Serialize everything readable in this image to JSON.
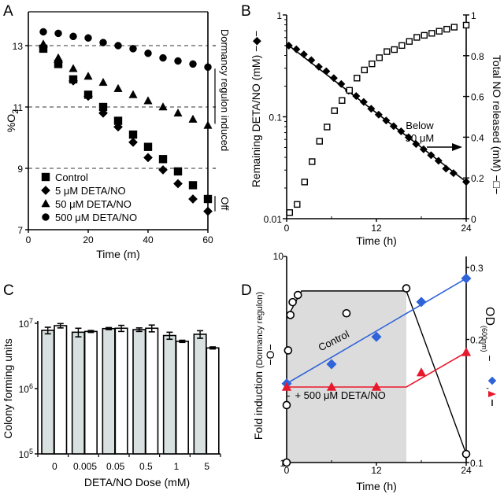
{
  "chart_data": [
    {
      "panel": "A",
      "type": "scatter",
      "title": "",
      "xlabel": "Time (m)",
      "ylabel": "%O2",
      "xlim": [
        0,
        60
      ],
      "ylim": [
        7,
        14
      ],
      "xticks": [
        "0",
        "20",
        "40",
        "60"
      ],
      "yticks": [
        "7",
        "9",
        "11",
        "13"
      ],
      "gridlines_dashed_y": [
        9,
        11,
        13
      ],
      "legend_position": "bottom-left",
      "series": [
        {
          "name": "Control",
          "marker": "square",
          "x": [
            5,
            10,
            15,
            20,
            25,
            30,
            35,
            40,
            45,
            50,
            55,
            60
          ],
          "y": [
            12.9,
            12.4,
            11.9,
            11.4,
            11.0,
            10.55,
            10.1,
            9.7,
            9.3,
            8.9,
            8.45,
            8.0
          ]
        },
        {
          "name": "5 μM DETA/NO",
          "marker": "diamond",
          "x": [
            5,
            10,
            15,
            20,
            25,
            30,
            35,
            40,
            45,
            50,
            55,
            60
          ],
          "y": [
            12.95,
            12.45,
            11.85,
            11.35,
            10.8,
            10.35,
            9.85,
            9.35,
            8.95,
            8.5,
            8.0,
            7.6
          ]
        },
        {
          "name": "50 μM DETA/NO",
          "marker": "triangle",
          "x": [
            5,
            10,
            15,
            20,
            25,
            30,
            35,
            40,
            45,
            50,
            55,
            60
          ],
          "y": [
            13.05,
            12.6,
            12.25,
            12.0,
            11.8,
            11.6,
            11.4,
            11.2,
            11.0,
            10.8,
            10.6,
            10.4
          ]
        },
        {
          "name": "500 μM DETA/NO",
          "marker": "circle",
          "x": [
            5,
            10,
            15,
            20,
            25,
            30,
            35,
            40,
            45,
            50,
            55,
            60
          ],
          "y": [
            13.45,
            13.4,
            13.3,
            13.25,
            13.1,
            13.0,
            12.9,
            12.75,
            12.6,
            12.5,
            12.4,
            12.3
          ]
        }
      ],
      "annotations": [
        {
          "text": "Dormancy regulon induced",
          "y_range": [
            10.4,
            12.3
          ]
        },
        {
          "text": "Off",
          "y_range": [
            7.6,
            8.1
          ]
        }
      ]
    },
    {
      "panel": "B",
      "type": "scatter",
      "xlabel": "Time (h)",
      "ylabel": "Remaining DETA/NO (mM) −◆−",
      "ylabel_right": "Total NO released (mM) −□−",
      "xlim": [
        0,
        24
      ],
      "ylim": [
        0.01,
        1
      ],
      "yscale": "log",
      "ylim_right": [
        0,
        1
      ],
      "xticks": [
        "0",
        "12",
        "24"
      ],
      "yticks": [
        "0.01",
        "0.1",
        "1"
      ],
      "yticks_right": [
        "0",
        "0.2",
        "0.4",
        "0.6",
        "0.8",
        "1"
      ],
      "annotation": {
        "text_line1": "Below",
        "text_line2": "50 μM",
        "arrow": "right"
      },
      "series": [
        {
          "name": "Remaining DETA/NO",
          "marker": "diamond-filled",
          "axis": "left",
          "fit_line": {
            "x": [
              0,
              24
            ],
            "y": [
              0.52,
              0.023
            ]
          },
          "x": [
            0.3,
            1.3,
            2.3,
            3.3,
            4.3,
            5.3,
            6.3,
            7.3,
            8.3,
            9.3,
            10.3,
            11.3,
            12.3,
            13.3,
            14.3,
            15.3,
            16.3,
            17.3,
            18.3,
            19.3,
            20.3,
            21.3,
            22.3,
            24
          ],
          "y": [
            0.5,
            0.46,
            0.41,
            0.36,
            0.31,
            0.28,
            0.24,
            0.21,
            0.18,
            0.16,
            0.14,
            0.12,
            0.105,
            0.092,
            0.081,
            0.072,
            0.063,
            0.054,
            0.048,
            0.042,
            0.037,
            0.031,
            0.028,
            0.023
          ]
        },
        {
          "name": "Total NO released",
          "marker": "square-open",
          "axis": "right",
          "x": [
            0.4,
            1.4,
            2.4,
            3.4,
            4.4,
            5.4,
            6.4,
            7.4,
            8.4,
            9.4,
            10.4,
            11.4,
            12.4,
            13.4,
            14.4,
            15.4,
            16.4,
            17.4,
            18.4,
            19.4,
            20.4,
            21.4,
            22.4,
            24
          ],
          "y": [
            0.03,
            0.07,
            0.18,
            0.28,
            0.38,
            0.45,
            0.53,
            0.58,
            0.63,
            0.69,
            0.73,
            0.76,
            0.79,
            0.82,
            0.83,
            0.85,
            0.87,
            0.89,
            0.9,
            0.91,
            0.92,
            0.93,
            0.94,
            0.95
          ]
        }
      ]
    },
    {
      "panel": "C",
      "type": "bar",
      "xlabel": "DETA/NO Dose (mM)",
      "ylabel": "Colony forming units",
      "yscale": "log",
      "ylim": [
        100000,
        10000000
      ],
      "yticks": [
        "10^5",
        "10^6",
        "10^7"
      ],
      "categories": [
        "0",
        "0.005",
        "0.05",
        "0.5",
        "1",
        "5"
      ],
      "series": [
        {
          "name": "gray",
          "color": "#d9e0e0",
          "values": [
            7800000,
            7300000,
            8300000,
            8000000,
            6500000,
            6800000
          ],
          "errors": [
            900000,
            1100000,
            300000,
            500000,
            800000,
            900000
          ]
        },
        {
          "name": "white",
          "color": "#ffffff",
          "values": [
            9200000,
            7500000,
            8400000,
            8400000,
            5300000,
            4200000
          ],
          "errors": [
            700000,
            250000,
            900000,
            1000000,
            200000,
            150000
          ]
        }
      ]
    },
    {
      "panel": "D",
      "type": "line",
      "xlabel": "Time (h)",
      "ylabel": "Fold induction",
      "ylabel_sub": "(Dormancy regulon)",
      "ylabel_marker": "−O−",
      "ylabel_right": "OD",
      "ylabel_right_sub": "(600nm)",
      "ylabel_right_suffix": "−◆, −▲−",
      "xlim": [
        0,
        24
      ],
      "ylim": [
        1,
        10
      ],
      "yscale": "log",
      "ylim_right": [
        0.1,
        0.32
      ],
      "yscale_right": "log",
      "xticks": [
        "0",
        "12",
        "24"
      ],
      "yticks": [
        "1",
        "10"
      ],
      "yticks_right": [
        "0.1",
        "0.2",
        "0.3"
      ],
      "shaded_region_x": [
        0,
        16
      ],
      "series": [
        {
          "name": "Fold induction",
          "marker": "circle-open",
          "axis": "left",
          "color": "#000000",
          "x": [
            0,
            0,
            0.2,
            0.5,
            0.8,
            1.5,
            8,
            16,
            24
          ],
          "y": [
            1,
            1.9,
            3.5,
            5.2,
            6.0,
            6.5,
            5.3,
            7.0,
            1.1
          ],
          "envelope_x": [
            0,
            2,
            16,
            24
          ],
          "envelope_y": [
            5.0,
            6.8,
            6.8,
            1.1
          ]
        },
        {
          "name": "Control",
          "marker": "diamond",
          "axis": "right",
          "color": "#2f63d9",
          "x": [
            0,
            6,
            12,
            18,
            24
          ],
          "y": [
            0.156,
            0.174,
            0.203,
            0.247,
            0.282
          ],
          "label": "Control"
        },
        {
          "name": "+ 500 μM DETA/NO",
          "marker": "triangle",
          "axis": "right",
          "color": "#e8192c",
          "x": [
            0,
            6,
            12,
            18,
            24
          ],
          "y": [
            0.153,
            0.153,
            0.153,
            0.166,
            0.186
          ],
          "label": "+ 500 μM DETA/NO"
        }
      ]
    }
  ],
  "labels": {
    "panelA": "A",
    "panelB": "B",
    "panelC": "C",
    "panelD": "D"
  }
}
